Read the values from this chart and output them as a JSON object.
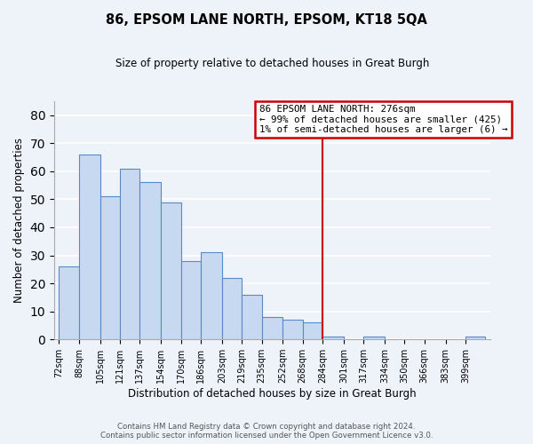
{
  "title": "86, EPSOM LANE NORTH, EPSOM, KT18 5QA",
  "subtitle": "Size of property relative to detached houses in Great Burgh",
  "xlabel": "Distribution of detached houses by size in Great Burgh",
  "ylabel": "Number of detached properties",
  "bin_labels": [
    "72sqm",
    "88sqm",
    "105sqm",
    "121sqm",
    "137sqm",
    "154sqm",
    "170sqm",
    "186sqm",
    "203sqm",
    "219sqm",
    "235sqm",
    "252sqm",
    "268sqm",
    "284sqm",
    "301sqm",
    "317sqm",
    "334sqm",
    "350sqm",
    "366sqm",
    "383sqm",
    "399sqm"
  ],
  "bar_heights": [
    26,
    66,
    51,
    61,
    56,
    49,
    28,
    31,
    22,
    16,
    8,
    7,
    6,
    1,
    0,
    1,
    0,
    0,
    0,
    0,
    1
  ],
  "bar_color": "#c6d9f0",
  "bar_edge_color": "#5a8ac6",
  "vline_bin_index": 13,
  "property_line_label": "86 EPSOM LANE NORTH: 276sqm",
  "annotation_line1": "← 99% of detached houses are smaller (425)",
  "annotation_line2": "1% of semi-detached houses are larger (6) →",
  "annotation_box_color": "#ffffff",
  "annotation_box_edge": "#cc0000",
  "vline_color": "#cc0000",
  "ylim": [
    0,
    85
  ],
  "yticks": [
    0,
    10,
    20,
    30,
    40,
    50,
    60,
    70,
    80
  ],
  "footnote1": "Contains HM Land Registry data © Crown copyright and database right 2024.",
  "footnote2": "Contains public sector information licensed under the Open Government Licence v3.0.",
  "bg_color": "#eef2f9",
  "grid_color": "#ffffff",
  "spine_color": "#aaaaaa"
}
